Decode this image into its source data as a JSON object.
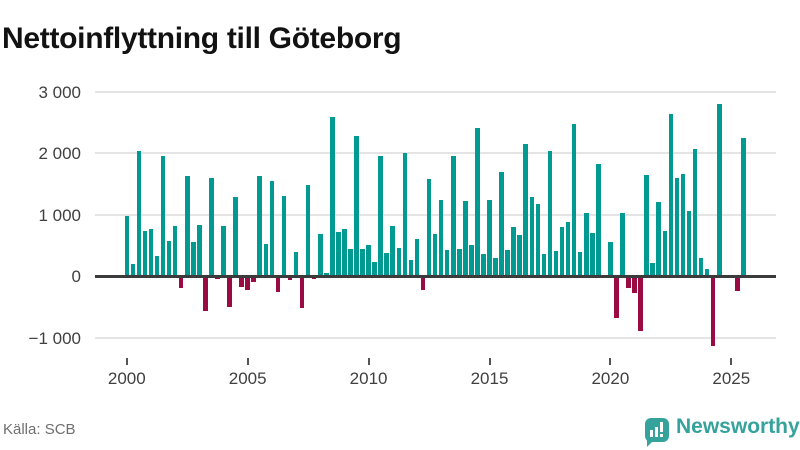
{
  "title": "Nettoinflyttning till Göteborg",
  "footer": {
    "source": "Källa: SCB",
    "brand": "Newsworthy"
  },
  "colors": {
    "positive_bar": "#009a93",
    "negative_bar": "#9a0a43",
    "gridline": "#e4e4e4",
    "zero_axis": "#3b3b3b",
    "axis_text": "#404040",
    "title_text": "#121212",
    "source_text": "#6f6f6f",
    "brand_teal": "#35a39b"
  },
  "chart_data": {
    "type": "bar",
    "title": "Nettoinflyttning till Göteborg",
    "xlabel": "",
    "ylabel": "",
    "frequency": "quarterly",
    "start_period": "2000 Q1",
    "end_period": "2025 Q3",
    "ylim": [
      -1200,
      3050
    ],
    "grid": "horizontal-only",
    "legend": "none",
    "y_ticks": [
      {
        "label": "3 000",
        "value": 3000
      },
      {
        "label": "2 000",
        "value": 2000
      },
      {
        "label": "1 000",
        "value": 1000
      },
      {
        "label": "0",
        "value": 0
      },
      {
        "label": "−1 000",
        "value": -1000
      }
    ],
    "x_ticks": [
      {
        "label": "2000",
        "year": 2000
      },
      {
        "label": "2005",
        "year": 2005
      },
      {
        "label": "2010",
        "year": 2010
      },
      {
        "label": "2015",
        "year": 2015
      },
      {
        "label": "2020",
        "year": 2020
      },
      {
        "label": "2025",
        "year": 2025
      }
    ],
    "values": [
      970,
      190,
      2030,
      735,
      770,
      330,
      1950,
      570,
      810,
      -200,
      1620,
      550,
      825,
      -575,
      1595,
      -50,
      810,
      -500,
      1290,
      -175,
      -220,
      -90,
      1630,
      520,
      1550,
      -260,
      1300,
      -70,
      385,
      -515,
      1480,
      -50,
      685,
      55,
      2590,
      720,
      770,
      440,
      2270,
      445,
      500,
      230,
      1945,
      380,
      805,
      460,
      2000,
      255,
      600,
      -220,
      1570,
      675,
      1230,
      425,
      1950,
      435,
      1220,
      505,
      2400,
      365,
      1240,
      290,
      1690,
      430,
      800,
      670,
      2150,
      1280,
      1170,
      350,
      2040,
      410,
      790,
      885,
      2465,
      385,
      1020,
      695,
      1825,
      0,
      555,
      -690,
      1030,
      -200,
      -270,
      -890,
      1645,
      205,
      1210,
      735,
      2630,
      1600,
      1655,
      1050,
      2065,
      290,
      110,
      -1140,
      2800,
      0,
      0,
      -250,
      2240
    ]
  }
}
